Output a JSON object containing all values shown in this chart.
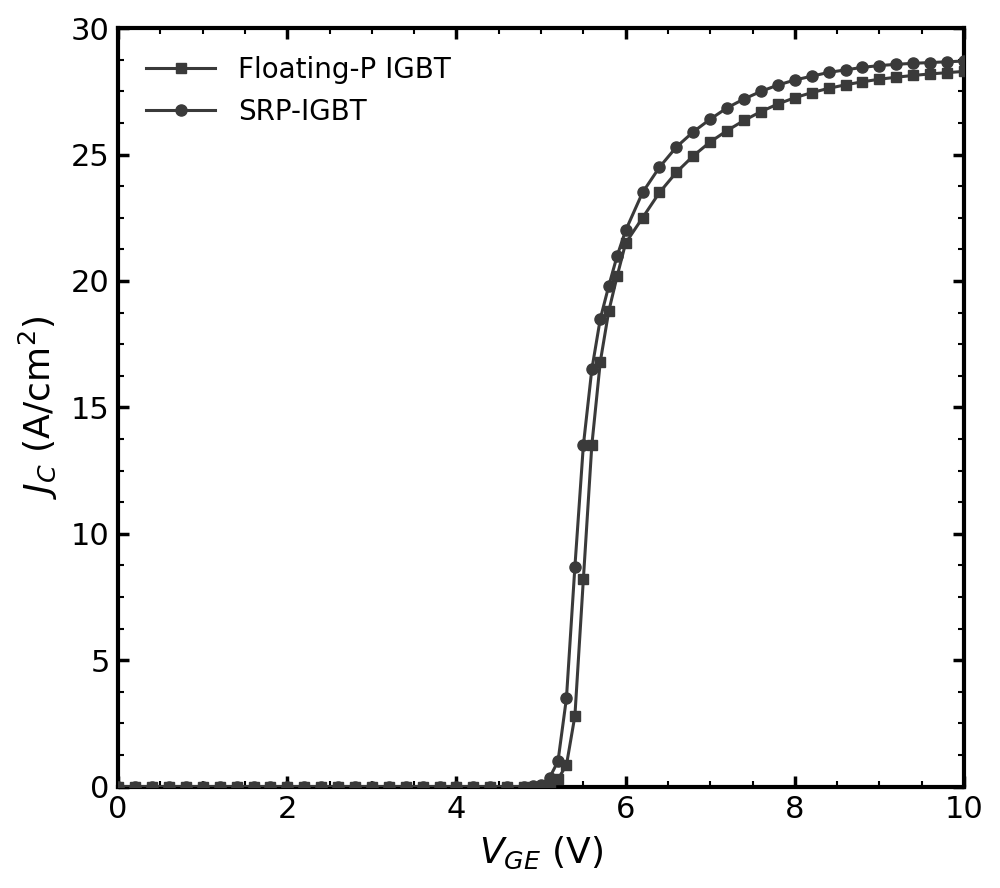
{
  "xlabel_text": "$V_{GE}$",
  "xlabel_unit": "(V)",
  "ylabel_text": "$J_C$",
  "ylabel_unit": "(A/cm$^2$)",
  "xlim": [
    0,
    10
  ],
  "ylim": [
    0,
    30
  ],
  "xticks": [
    0,
    2,
    4,
    6,
    8,
    10
  ],
  "yticks": [
    0,
    5,
    10,
    15,
    20,
    25,
    30
  ],
  "line_color": "#3a3a3a",
  "legend_entries": [
    "Floating-P IGBT",
    "SRP-IGBT"
  ],
  "srp_x": [
    0.0,
    0.2,
    0.4,
    0.6,
    0.8,
    1.0,
    1.2,
    1.4,
    1.6,
    1.8,
    2.0,
    2.2,
    2.4,
    2.6,
    2.8,
    3.0,
    3.2,
    3.4,
    3.6,
    3.8,
    4.0,
    4.2,
    4.4,
    4.6,
    4.8,
    4.9,
    5.0,
    5.1,
    5.2,
    5.3,
    5.4,
    5.5,
    5.6,
    5.7,
    5.8,
    5.9,
    6.0,
    6.2,
    6.4,
    6.6,
    6.8,
    7.0,
    7.2,
    7.4,
    7.6,
    7.8,
    8.0,
    8.2,
    8.4,
    8.6,
    8.8,
    9.0,
    9.2,
    9.4,
    9.6,
    9.8,
    10.0
  ],
  "srp_y": [
    0.0,
    0.0,
    0.0,
    0.0,
    0.0,
    0.0,
    0.0,
    0.0,
    0.0,
    0.0,
    0.0,
    0.0,
    0.0,
    0.0,
    0.0,
    0.0,
    0.0,
    0.0,
    0.0,
    0.0,
    0.0,
    0.0,
    0.0,
    0.0,
    0.0,
    0.02,
    0.08,
    0.35,
    1.0,
    3.5,
    8.7,
    13.5,
    16.5,
    18.5,
    19.8,
    21.0,
    22.0,
    23.5,
    24.5,
    25.3,
    25.9,
    26.4,
    26.85,
    27.2,
    27.5,
    27.75,
    27.95,
    28.1,
    28.25,
    28.35,
    28.45,
    28.52,
    28.57,
    28.61,
    28.64,
    28.67,
    28.7
  ],
  "fp_x": [
    0.0,
    0.2,
    0.4,
    0.6,
    0.8,
    1.0,
    1.2,
    1.4,
    1.6,
    1.8,
    2.0,
    2.2,
    2.4,
    2.6,
    2.8,
    3.0,
    3.2,
    3.4,
    3.6,
    3.8,
    4.0,
    4.2,
    4.4,
    4.6,
    4.8,
    5.0,
    5.1,
    5.2,
    5.3,
    5.4,
    5.5,
    5.6,
    5.7,
    5.8,
    5.9,
    6.0,
    6.2,
    6.4,
    6.6,
    6.8,
    7.0,
    7.2,
    7.4,
    7.6,
    7.8,
    8.0,
    8.2,
    8.4,
    8.6,
    8.8,
    9.0,
    9.2,
    9.4,
    9.6,
    9.8,
    10.0
  ],
  "fp_y": [
    0.0,
    0.0,
    0.0,
    0.0,
    0.0,
    0.0,
    0.0,
    0.0,
    0.0,
    0.0,
    0.0,
    0.0,
    0.0,
    0.0,
    0.0,
    0.0,
    0.0,
    0.0,
    0.0,
    0.0,
    0.0,
    0.0,
    0.0,
    0.0,
    0.0,
    0.0,
    0.05,
    0.3,
    0.85,
    2.8,
    8.2,
    13.5,
    16.8,
    18.8,
    20.2,
    21.5,
    22.5,
    23.5,
    24.3,
    24.95,
    25.5,
    25.95,
    26.35,
    26.7,
    27.0,
    27.25,
    27.45,
    27.62,
    27.76,
    27.88,
    27.98,
    28.06,
    28.13,
    28.19,
    28.24,
    28.29
  ]
}
